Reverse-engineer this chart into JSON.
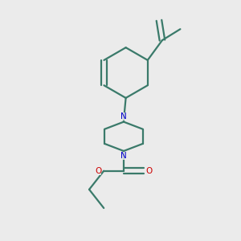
{
  "background_color": "#ebebeb",
  "bond_color": "#3a7a6a",
  "N_color": "#0000cc",
  "O_color": "#cc0000",
  "line_width": 1.6,
  "figsize": [
    3.0,
    3.0
  ],
  "dpi": 100,
  "xlim": [
    0.05,
    0.75
  ],
  "ylim": [
    0.05,
    0.95
  ]
}
